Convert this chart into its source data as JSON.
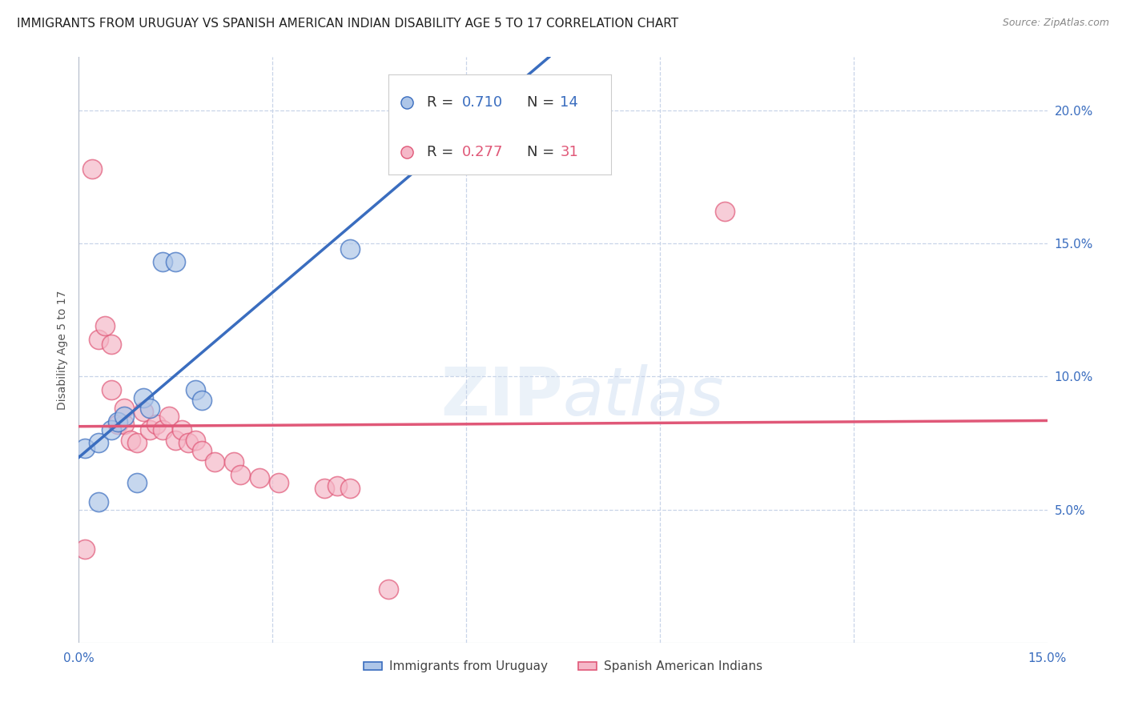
{
  "title": "IMMIGRANTS FROM URUGUAY VS SPANISH AMERICAN INDIAN DISABILITY AGE 5 TO 17 CORRELATION CHART",
  "source": "Source: ZipAtlas.com",
  "ylabel": "Disability Age 5 to 17",
  "xlim": [
    0.0,
    0.15
  ],
  "ylim": [
    0.0,
    0.22
  ],
  "watermark": "ZIPatlas",
  "uruguay_color": "#aec6e8",
  "spanish_color": "#f5b8c8",
  "uruguay_line_color": "#3a6dbf",
  "spanish_line_color": "#e05878",
  "diagonal_color": "#b0c8e0",
  "uruguay_points": [
    [
      0.001,
      0.073
    ],
    [
      0.003,
      0.075
    ],
    [
      0.005,
      0.08
    ],
    [
      0.006,
      0.083
    ],
    [
      0.007,
      0.085
    ],
    [
      0.01,
      0.092
    ],
    [
      0.011,
      0.088
    ],
    [
      0.013,
      0.143
    ],
    [
      0.015,
      0.143
    ],
    [
      0.018,
      0.095
    ],
    [
      0.019,
      0.091
    ],
    [
      0.042,
      0.148
    ],
    [
      0.003,
      0.053
    ],
    [
      0.009,
      0.06
    ]
  ],
  "spanish_points": [
    [
      0.002,
      0.178
    ],
    [
      0.003,
      0.114
    ],
    [
      0.004,
      0.119
    ],
    [
      0.005,
      0.112
    ],
    [
      0.005,
      0.095
    ],
    [
      0.006,
      0.082
    ],
    [
      0.007,
      0.082
    ],
    [
      0.007,
      0.088
    ],
    [
      0.008,
      0.076
    ],
    [
      0.009,
      0.075
    ],
    [
      0.01,
      0.087
    ],
    [
      0.011,
      0.08
    ],
    [
      0.012,
      0.082
    ],
    [
      0.013,
      0.08
    ],
    [
      0.014,
      0.085
    ],
    [
      0.015,
      0.076
    ],
    [
      0.016,
      0.08
    ],
    [
      0.017,
      0.075
    ],
    [
      0.018,
      0.076
    ],
    [
      0.019,
      0.072
    ],
    [
      0.021,
      0.068
    ],
    [
      0.024,
      0.068
    ],
    [
      0.025,
      0.063
    ],
    [
      0.028,
      0.062
    ],
    [
      0.031,
      0.06
    ],
    [
      0.038,
      0.058
    ],
    [
      0.04,
      0.059
    ],
    [
      0.042,
      0.058
    ],
    [
      0.1,
      0.162
    ],
    [
      0.001,
      0.035
    ],
    [
      0.048,
      0.02
    ]
  ],
  "grid_color": "#c8d4e8",
  "bg_color": "#ffffff",
  "title_fontsize": 11,
  "axis_label_fontsize": 10,
  "tick_fontsize": 11,
  "legend_fontsize": 13
}
